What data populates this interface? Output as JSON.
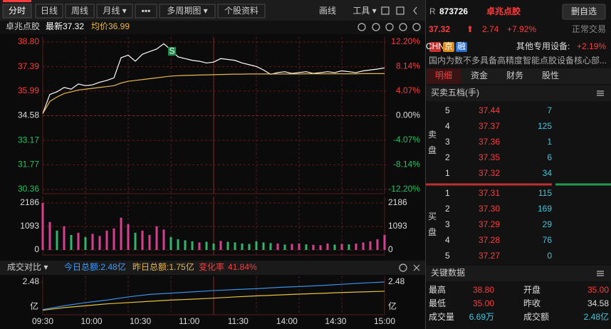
{
  "toolbar": {
    "tabs": [
      "分时",
      "日线",
      "周线",
      "月线 ▾",
      "▪▪▪",
      "多周期图 ▾",
      "个股资料"
    ],
    "tools": [
      "画线",
      "工具 ▾"
    ]
  },
  "info_bar": {
    "name": "卓兆点胶",
    "latest": "最新37.32",
    "avg": "均价36.99"
  },
  "chart_data": [
    {
      "type": "line",
      "series": [
        {
          "color": "#ffffff",
          "values": [
            34.7,
            35.8,
            35.95,
            36.2,
            36.1,
            36.4,
            36.3,
            36.35,
            36.5,
            36.6,
            36.75,
            37.9,
            38.05,
            37.7,
            38.1,
            38.25,
            38.4,
            38.7,
            38.35,
            37.95,
            37.85,
            37.75,
            37.7,
            37.6,
            37.65,
            37.85,
            37.8,
            37.75,
            37.6,
            37.5,
            37.4,
            37.2,
            36.95,
            37.05,
            37.1,
            37.0,
            37.05,
            37.1,
            37.0,
            37.05,
            37.1,
            37.05,
            37.15,
            37.1,
            37.05,
            37.15,
            37.2,
            37.25,
            37.32
          ]
        },
        {
          "color": "#e8b84a",
          "values": [
            34.7,
            35.4,
            35.65,
            35.85,
            35.95,
            36.05,
            36.1,
            36.15,
            36.2,
            36.25,
            36.3,
            36.45,
            36.55,
            36.6,
            36.65,
            36.7,
            36.75,
            36.8,
            36.85,
            36.87,
            36.89,
            36.9,
            36.91,
            36.92,
            36.93,
            36.94,
            36.95,
            36.96,
            36.96,
            36.97,
            36.97,
            36.97,
            36.97,
            36.97,
            36.97,
            36.97,
            36.97,
            36.98,
            36.98,
            36.98,
            36.98,
            36.98,
            36.98,
            36.98,
            36.98,
            36.99,
            36.99,
            36.99,
            36.99
          ]
        }
      ],
      "annotation": "S",
      "ylim": [
        30.36,
        38.8
      ],
      "yticks": [
        {
          "value": 38.8,
          "label": "38.80"
        },
        37.39,
        35.99,
        34.58,
        33.17,
        31.77,
        30.36
      ],
      "y2lim": [
        -12.2,
        12.2
      ],
      "y2ticks": [
        {
          "value": 12.2,
          "label": "12.20%"
        },
        {
          "value": 8.14,
          "label": "8.14%"
        },
        {
          "value": 4.07,
          "label": "4.07%"
        },
        {
          "value": 0,
          "label": "0.00%"
        },
        {
          "value": -4.07,
          "label": "-4.07%"
        },
        {
          "value": -8.14,
          "label": "-8.14%"
        },
        {
          "value": -12.2,
          "label": "-12.20%"
        }
      ],
      "grid": true
    },
    {
      "type": "bar",
      "values": [
        2186,
        1300,
        900,
        1100,
        700,
        800,
        600,
        750,
        650,
        900,
        1000,
        1500,
        1200,
        800,
        900,
        700,
        1100,
        950,
        600,
        500,
        450,
        400,
        350,
        380,
        300,
        420,
        380,
        350,
        300,
        280,
        400,
        350,
        320,
        300,
        250,
        280,
        300,
        260,
        240,
        220,
        300,
        250,
        280,
        260,
        300,
        350,
        400,
        500,
        700
      ],
      "colors": [
        "#d8408f",
        "#d8408f",
        "#35b36b",
        "#d8408f",
        "#35b36b",
        "#d8408f",
        "#35b36b",
        "#d8408f",
        "#d8408f",
        "#d8408f",
        "#d8408f",
        "#d8408f",
        "#d8408f",
        "#35b36b",
        "#d8408f",
        "#d8408f",
        "#d8408f",
        "#d8408f",
        "#35b36b",
        "#35b36b",
        "#35b36b",
        "#35b36b",
        "#d8408f",
        "#35b36b",
        "#35b36b",
        "#d8408f",
        "#35b36b",
        "#35b36b",
        "#35b36b",
        "#35b36b",
        "#35b36b",
        "#35b36b",
        "#35b36b",
        "#d8408f",
        "#35b36b",
        "#d8408f",
        "#d8408f",
        "#35b36b",
        "#d8408f",
        "#d8408f",
        "#d8408f",
        "#35b36b",
        "#d8408f",
        "#35b36b",
        "#d8408f",
        "#d8408f",
        "#d8408f",
        "#d8408f",
        "#d8408f"
      ],
      "ylim": [
        0,
        2186
      ],
      "yticks": [
        2186,
        1093,
        0
      ],
      "grid": true
    },
    {
      "type": "line",
      "series": [
        {
          "color": "#3b8fe8",
          "values": [
            0.3,
            0.6,
            0.85,
            1.05,
            1.3,
            1.5,
            1.6,
            1.7,
            1.8,
            1.88,
            1.95,
            2.05,
            2.12,
            2.2,
            2.3,
            2.4,
            2.48
          ]
        },
        {
          "color": "#e8c43a",
          "values": [
            0.25,
            0.45,
            0.6,
            0.75,
            0.85,
            0.95,
            1.05,
            1.12,
            1.2,
            1.3,
            1.38,
            1.45,
            1.52,
            1.58,
            1.65,
            1.7,
            1.75
          ]
        }
      ],
      "ylim": [
        0,
        2.48
      ],
      "yticks": [
        2.48
      ],
      "y_unit": "亿",
      "xticks": [
        "09:30",
        "10:00",
        "10:30",
        "11:00",
        "11:30",
        "14:00",
        "14:30",
        "15:00"
      ]
    }
  ],
  "compare_bar": {
    "selector": "成交对比 ▾",
    "today": "今日总额:2.48亿",
    "yesterday": "昨日总额:1.75亿",
    "change_label": "变化率",
    "change": "41.84%"
  },
  "quote": {
    "market": "R",
    "code": "873726",
    "name": "卓兆点胶",
    "button": "删自选",
    "price": "37.32",
    "arrow": "⬆",
    "change": "2.74",
    "change_pct": "+7.92%",
    "status": "正常交易",
    "badges": [
      "CHN",
      "京",
      "融"
    ],
    "sector": "其他专用设备:",
    "sector_pct": "+2.19%",
    "desc": "国内为数不多具备高精度智能点胶设备核心部..."
  },
  "tabs": [
    "明细",
    "资金",
    "财务",
    "股性"
  ],
  "order_book": {
    "title": "买卖五档(手)",
    "sell_label": [
      "卖",
      "盘"
    ],
    "buy_label": [
      "买",
      "盘"
    ],
    "asks": [
      [
        "5",
        "37.44",
        "7"
      ],
      [
        "4",
        "37.37",
        "125"
      ],
      [
        "3",
        "37.36",
        "1"
      ],
      [
        "2",
        "37.35",
        "6"
      ],
      [
        "1",
        "37.32",
        "34"
      ]
    ],
    "bids": [
      [
        "1",
        "37.31",
        "115"
      ],
      [
        "2",
        "37.30",
        "169"
      ],
      [
        "3",
        "37.29",
        "29"
      ],
      [
        "4",
        "37.28",
        "76"
      ],
      [
        "5",
        "37.27",
        "0"
      ]
    ]
  },
  "key_data": {
    "title": "关键数据",
    "rows": [
      [
        "最高",
        "38.80",
        "开盘",
        "35.00"
      ],
      [
        "最低",
        "35.00",
        "昨收",
        "34.58"
      ],
      [
        "成交量",
        "6.69万",
        "成交额",
        "2.48亿"
      ]
    ]
  }
}
